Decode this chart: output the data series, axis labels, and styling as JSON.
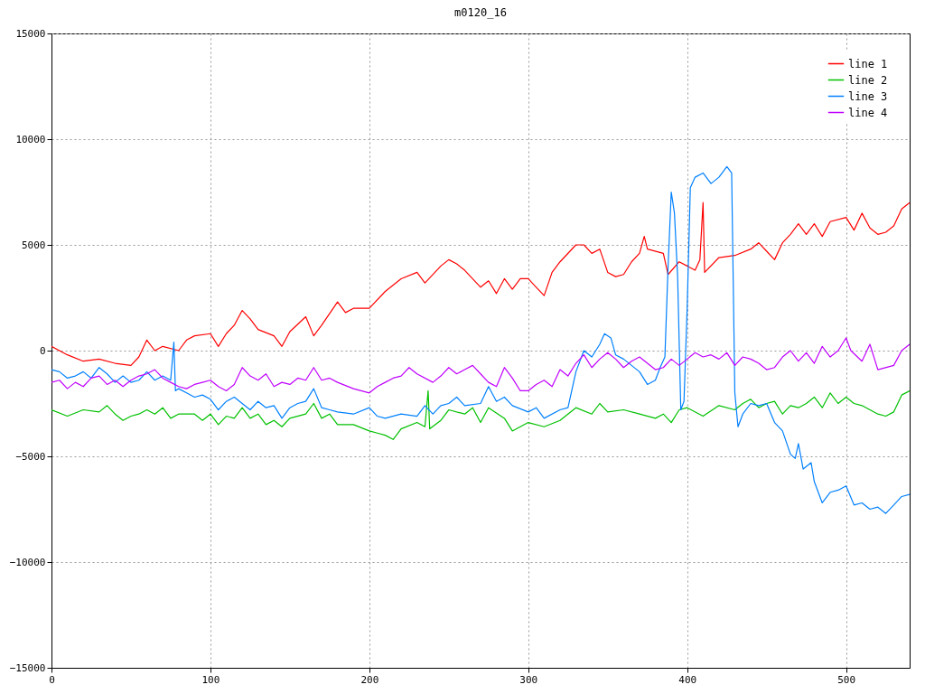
{
  "chart_data": {
    "type": "line",
    "title": "m0120_16",
    "xlim": [
      0,
      540
    ],
    "xticks": [
      0,
      100,
      200,
      300,
      400,
      500
    ],
    "ylim": [
      -15000,
      15000
    ],
    "yticks": [
      -15000,
      -10000,
      -5000,
      0,
      5000,
      10000,
      15000
    ],
    "grid": true,
    "legend": "top right",
    "series": [
      {
        "name": "line 1",
        "color": "#ff0000",
        "x": [
          0,
          10,
          20,
          30,
          40,
          50,
          55,
          60,
          65,
          70,
          80,
          85,
          90,
          100,
          105,
          110,
          115,
          120,
          125,
          130,
          140,
          145,
          150,
          160,
          165,
          170,
          180,
          185,
          190,
          200,
          210,
          220,
          230,
          235,
          245,
          250,
          255,
          260,
          270,
          275,
          280,
          285,
          290,
          295,
          300,
          305,
          310,
          315,
          320,
          330,
          335,
          340,
          345,
          350,
          355,
          360,
          365,
          370,
          373,
          375,
          385,
          388,
          395,
          400,
          405,
          408,
          410,
          411,
          420,
          430,
          440,
          445,
          450,
          455,
          460,
          465,
          470,
          475,
          480,
          485,
          490,
          500,
          505,
          510,
          515,
          520,
          525,
          530,
          535,
          540
        ],
        "values": [
          200,
          -200,
          -500,
          -400,
          -600,
          -700,
          -300,
          500,
          0,
          200,
          0,
          500,
          700,
          800,
          200,
          800,
          1200,
          1900,
          1500,
          1000,
          700,
          200,
          900,
          1600,
          700,
          1200,
          2300,
          1800,
          2000,
          2000,
          2800,
          3400,
          3700,
          3200,
          4000,
          4300,
          4100,
          3800,
          3000,
          3300,
          2700,
          3400,
          2900,
          3400,
          3400,
          3000,
          2600,
          3700,
          4200,
          5000,
          5000,
          4600,
          4800,
          3700,
          3500,
          3600,
          4200,
          4600,
          5400,
          4800,
          4600,
          3600,
          4200,
          4000,
          3800,
          4300,
          7000,
          3700,
          4400,
          4500,
          4800,
          5100,
          4700,
          4300,
          5100,
          5500,
          6000,
          5500,
          6000,
          5400,
          6100,
          6300,
          5700,
          6500,
          5800,
          5500,
          5600,
          5900,
          6700,
          7000
        ]
      },
      {
        "name": "line 2",
        "color": "#00c000",
        "x": [
          0,
          10,
          20,
          30,
          35,
          40,
          45,
          50,
          55,
          60,
          65,
          70,
          75,
          80,
          90,
          95,
          100,
          105,
          110,
          115,
          120,
          125,
          130,
          135,
          140,
          145,
          150,
          160,
          165,
          170,
          175,
          180,
          190,
          200,
          205,
          210,
          215,
          220,
          230,
          235,
          237,
          238,
          245,
          250,
          260,
          265,
          270,
          275,
          285,
          290,
          300,
          310,
          320,
          325,
          330,
          340,
          345,
          350,
          360,
          370,
          380,
          385,
          390,
          395,
          400,
          410,
          420,
          430,
          435,
          440,
          445,
          450,
          455,
          460,
          465,
          470,
          475,
          480,
          485,
          490,
          495,
          500,
          505,
          510,
          515,
          520,
          525,
          530,
          535,
          540
        ],
        "values": [
          -2800,
          -3100,
          -2800,
          -2900,
          -2600,
          -3000,
          -3300,
          -3100,
          -3000,
          -2800,
          -3000,
          -2700,
          -3200,
          -3000,
          -3000,
          -3300,
          -3000,
          -3500,
          -3100,
          -3200,
          -2700,
          -3200,
          -3000,
          -3500,
          -3300,
          -3600,
          -3200,
          -3000,
          -2500,
          -3200,
          -3000,
          -3500,
          -3500,
          -3800,
          -3900,
          -4000,
          -4200,
          -3700,
          -3400,
          -3600,
          -1900,
          -3700,
          -3300,
          -2800,
          -3000,
          -2700,
          -3400,
          -2700,
          -3200,
          -3800,
          -3400,
          -3600,
          -3300,
          -3000,
          -2700,
          -3000,
          -2500,
          -2900,
          -2800,
          -3000,
          -3200,
          -3000,
          -3400,
          -2800,
          -2700,
          -3100,
          -2600,
          -2800,
          -2500,
          -2300,
          -2700,
          -2500,
          -2400,
          -3000,
          -2600,
          -2700,
          -2500,
          -2200,
          -2700,
          -2000,
          -2500,
          -2200,
          -2500,
          -2600,
          -2800,
          -3000,
          -3100,
          -2900,
          -2100,
          -1900
        ]
      },
      {
        "name": "line 3",
        "color": "#0080ff",
        "x": [
          0,
          5,
          10,
          15,
          20,
          25,
          30,
          35,
          40,
          45,
          50,
          55,
          60,
          65,
          70,
          75,
          77,
          78,
          80,
          85,
          90,
          95,
          100,
          105,
          110,
          115,
          120,
          125,
          130,
          135,
          140,
          145,
          150,
          155,
          160,
          165,
          170,
          175,
          180,
          190,
          200,
          205,
          210,
          220,
          230,
          235,
          240,
          245,
          250,
          255,
          260,
          270,
          275,
          280,
          285,
          290,
          300,
          305,
          310,
          320,
          325,
          330,
          335,
          340,
          345,
          348,
          352,
          355,
          360,
          365,
          370,
          375,
          380,
          383,
          386,
          388,
          390,
          392,
          394,
          396,
          398,
          400,
          402,
          405,
          410,
          415,
          420,
          425,
          428,
          430,
          432,
          435,
          440,
          445,
          450,
          455,
          460,
          465,
          468,
          470,
          473,
          478,
          480,
          485,
          490,
          495,
          500,
          505,
          510,
          515,
          520,
          525,
          530,
          535,
          540
        ],
        "values": [
          -900,
          -1000,
          -1300,
          -1200,
          -1000,
          -1300,
          -800,
          -1100,
          -1500,
          -1200,
          -1500,
          -1400,
          -1000,
          -1400,
          -1200,
          -1400,
          400,
          -1900,
          -1800,
          -2000,
          -2200,
          -2100,
          -2300,
          -2800,
          -2400,
          -2200,
          -2500,
          -2800,
          -2400,
          -2700,
          -2600,
          -3200,
          -2700,
          -2500,
          -2400,
          -1800,
          -2700,
          -2800,
          -2900,
          -3000,
          -2700,
          -3100,
          -3200,
          -3000,
          -3100,
          -2600,
          -3000,
          -2600,
          -2500,
          -2200,
          -2600,
          -2500,
          -1700,
          -2400,
          -2200,
          -2600,
          -2900,
          -2700,
          -3200,
          -2800,
          -2700,
          -1000,
          0,
          -300,
          300,
          800,
          600,
          -200,
          -400,
          -700,
          -1000,
          -1600,
          -1400,
          -800,
          -300,
          4000,
          7500,
          6500,
          3500,
          -2800,
          -2400,
          2000,
          7700,
          8200,
          8400,
          7900,
          8200,
          8700,
          8400,
          -2000,
          -3600,
          -3000,
          -2500,
          -2600,
          -2500,
          -3400,
          -3800,
          -4900,
          -5100,
          -4400,
          -5600,
          -5300,
          -6200,
          -7200,
          -6700,
          -6600,
          -6400,
          -7300,
          -7200,
          -7500,
          -7400,
          -7700,
          -7300,
          -6900,
          -6800
        ]
      },
      {
        "name": "line 4",
        "color": "#c000ff",
        "x": [
          0,
          5,
          10,
          15,
          20,
          25,
          30,
          35,
          40,
          45,
          50,
          55,
          60,
          65,
          70,
          75,
          80,
          85,
          90,
          95,
          100,
          105,
          110,
          115,
          120,
          125,
          130,
          135,
          140,
          145,
          150,
          155,
          160,
          165,
          170,
          175,
          180,
          190,
          200,
          205,
          210,
          215,
          220,
          225,
          230,
          240,
          245,
          250,
          255,
          260,
          265,
          270,
          275,
          280,
          285,
          290,
          295,
          300,
          305,
          310,
          315,
          320,
          325,
          330,
          335,
          340,
          345,
          350,
          355,
          360,
          365,
          370,
          375,
          380,
          385,
          390,
          395,
          400,
          405,
          410,
          415,
          420,
          425,
          430,
          435,
          440,
          445,
          450,
          455,
          460,
          465,
          470,
          475,
          480,
          485,
          490,
          495,
          500,
          503,
          510,
          515,
          520,
          530,
          535,
          540
        ],
        "values": [
          -1500,
          -1400,
          -1800,
          -1500,
          -1700,
          -1300,
          -1200,
          -1600,
          -1400,
          -1700,
          -1400,
          -1200,
          -1100,
          -900,
          -1300,
          -1500,
          -1700,
          -1800,
          -1600,
          -1500,
          -1400,
          -1700,
          -1900,
          -1600,
          -800,
          -1200,
          -1400,
          -1100,
          -1700,
          -1500,
          -1600,
          -1300,
          -1400,
          -800,
          -1400,
          -1300,
          -1500,
          -1800,
          -2000,
          -1700,
          -1500,
          -1300,
          -1200,
          -800,
          -1100,
          -1500,
          -1200,
          -800,
          -1100,
          -900,
          -700,
          -1100,
          -1500,
          -1700,
          -800,
          -1300,
          -1900,
          -1900,
          -1600,
          -1400,
          -1700,
          -900,
          -1200,
          -600,
          -200,
          -800,
          -400,
          -100,
          -400,
          -800,
          -500,
          -300,
          -600,
          -900,
          -800,
          -400,
          -700,
          -400,
          -100,
          -300,
          -200,
          -400,
          -100,
          -700,
          -300,
          -400,
          -600,
          -900,
          -800,
          -300,
          0,
          -500,
          -100,
          -600,
          200,
          -300,
          0,
          600,
          0,
          -500,
          300,
          -900,
          -700,
          0,
          300
        ]
      }
    ]
  }
}
